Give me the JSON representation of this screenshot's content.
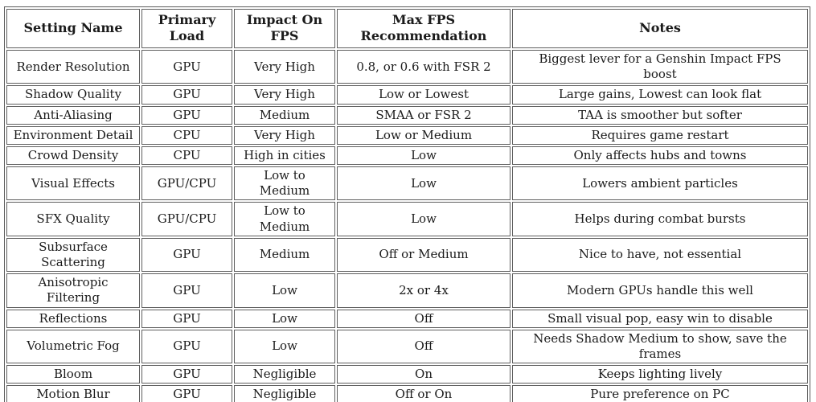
{
  "chart_data": {
    "type": "table",
    "columns": [
      "Setting Name",
      "Primary\nLoad",
      "Impact On\nFPS",
      "Max FPS\nRecommendation",
      "Notes"
    ],
    "rows": [
      [
        "Render Resolution",
        "GPU",
        "Very High",
        "0.8, or 0.6 with FSR 2",
        "Biggest lever for a Genshin Impact FPS\nboost"
      ],
      [
        "Shadow Quality",
        "GPU",
        "Very High",
        "Low or Lowest",
        "Large gains, Lowest can look flat"
      ],
      [
        "Anti-Aliasing",
        "GPU",
        "Medium",
        "SMAA or FSR 2",
        "TAA is smoother but softer"
      ],
      [
        "Environment Detail",
        "CPU",
        "Very High",
        "Low or Medium",
        "Requires game restart"
      ],
      [
        "Crowd Density",
        "CPU",
        "High in cities",
        "Low",
        "Only affects hubs and towns"
      ],
      [
        "Visual Effects",
        "GPU/CPU",
        "Low to\nMedium",
        "Low",
        "Lowers ambient particles"
      ],
      [
        "SFX Quality",
        "GPU/CPU",
        "Low to\nMedium",
        "Low",
        "Helps during combat bursts"
      ],
      [
        "Subsurface\nScattering",
        "GPU",
        "Medium",
        "Off or Medium",
        "Nice to have, not essential"
      ],
      [
        "Anisotropic\nFiltering",
        "GPU",
        "Low",
        "2x or 4x",
        "Modern GPUs handle this well"
      ],
      [
        "Reflections",
        "GPU",
        "Low",
        "Off",
        "Small visual pop, easy win to disable"
      ],
      [
        "Volumetric Fog",
        "GPU",
        "Low",
        "Off",
        "Needs Shadow Medium to show, save the\nframes"
      ],
      [
        "Bloom",
        "GPU",
        "Negligible",
        "On",
        "Keeps lighting lively"
      ],
      [
        "Motion Blur",
        "GPU",
        "Negligible",
        "Off or On",
        "Pure preference on PC"
      ]
    ],
    "layout": {
      "grid": "separated-cell-borders",
      "text_align": "center"
    }
  },
  "colors": {
    "border": "#5f5f5f",
    "text": "#1b1b1b",
    "background": "#ffffff"
  }
}
